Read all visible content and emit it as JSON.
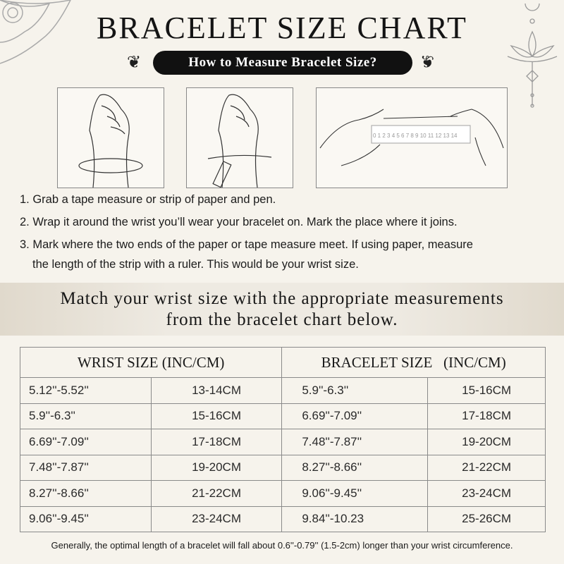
{
  "title": "BRACELET SIZE CHART",
  "subtitle": "How to Measure Bracelet Size?",
  "ruler_numbers": [
    "0",
    "1",
    "2",
    "3",
    "4",
    "5",
    "6",
    "7",
    "8",
    "9",
    "10",
    "11",
    "12",
    "13",
    "14"
  ],
  "steps": [
    "1. Grab a tape measure or strip of paper and pen.",
    "2. Wrap it around the wrist you’ll wear your bracelet on. Mark the place where it joins.",
    "3. Mark where the two ends of the paper or tape measure meet. If using paper, measure",
    "the length of the strip with a ruler. This would be your wrist size."
  ],
  "band": [
    "Match your wrist size with the appropriate measurements",
    "from the bracelet chart below."
  ],
  "table": {
    "headers": [
      "WRIST SIZE (INC/CM)",
      "BRACELET SIZE   (INC/CM)"
    ],
    "rows": [
      [
        "5.12''-5.52''",
        "13-14CM",
        "5.9''-6.3''",
        "15-16CM"
      ],
      [
        "5.9''-6.3''",
        "15-16CM",
        "6.69''-7.09''",
        "17-18CM"
      ],
      [
        "6.69''-7.09''",
        "17-18CM",
        "7.48''-7.87''",
        "19-20CM"
      ],
      [
        "7.48''-7.87''",
        "19-20CM",
        "8.27''-8.66''",
        "21-22CM"
      ],
      [
        "8.27''-8.66''",
        "21-22CM",
        "9.06''-9.45''",
        "23-24CM"
      ],
      [
        "9.06''-9.45''",
        "23-24CM",
        "9.84''-10.23",
        "25-26CM"
      ]
    ]
  },
  "note": "Generally, the optimal length of a bracelet will fall about 0.6''-0.79'' (1.5-2cm) longer than your wrist circumference."
}
